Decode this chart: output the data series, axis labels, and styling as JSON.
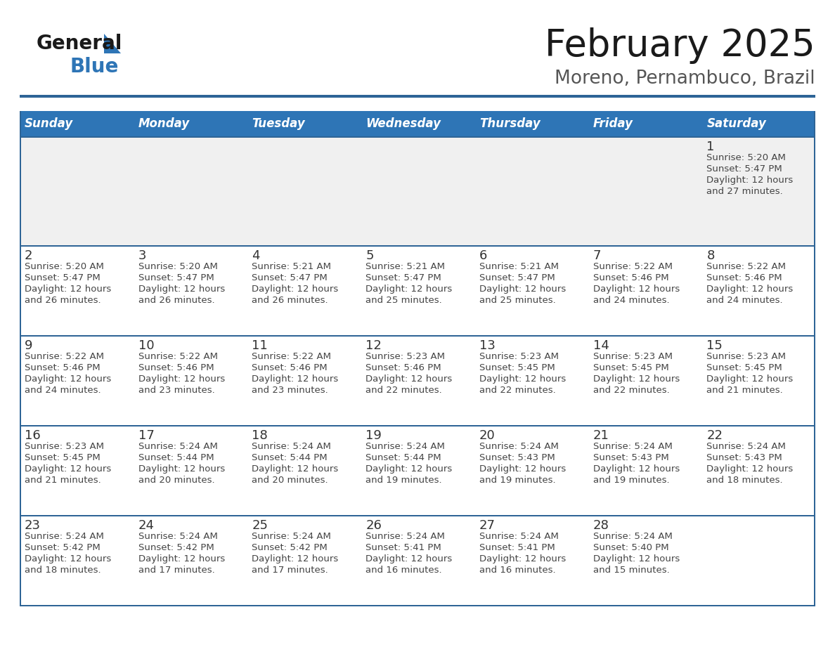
{
  "title": "February 2025",
  "subtitle": "Moreno, Pernambuco, Brazil",
  "header_bg": "#2E75B6",
  "header_text_color": "#FFFFFF",
  "cell_bg_white": "#FFFFFF",
  "cell_bg_light": "#F0F0F0",
  "divider_color": "#2E6496",
  "text_color": "#444444",
  "day_number_color": "#333333",
  "days_of_week": [
    "Sunday",
    "Monday",
    "Tuesday",
    "Wednesday",
    "Thursday",
    "Friday",
    "Saturday"
  ],
  "calendar_data": [
    [
      null,
      null,
      null,
      null,
      null,
      null,
      {
        "day": 1,
        "sunrise": "5:20 AM",
        "sunset": "5:47 PM",
        "daylight": "12 hours and 27 minutes."
      }
    ],
    [
      {
        "day": 2,
        "sunrise": "5:20 AM",
        "sunset": "5:47 PM",
        "daylight": "12 hours and 26 minutes."
      },
      {
        "day": 3,
        "sunrise": "5:20 AM",
        "sunset": "5:47 PM",
        "daylight": "12 hours and 26 minutes."
      },
      {
        "day": 4,
        "sunrise": "5:21 AM",
        "sunset": "5:47 PM",
        "daylight": "12 hours and 26 minutes."
      },
      {
        "day": 5,
        "sunrise": "5:21 AM",
        "sunset": "5:47 PM",
        "daylight": "12 hours and 25 minutes."
      },
      {
        "day": 6,
        "sunrise": "5:21 AM",
        "sunset": "5:47 PM",
        "daylight": "12 hours and 25 minutes."
      },
      {
        "day": 7,
        "sunrise": "5:22 AM",
        "sunset": "5:46 PM",
        "daylight": "12 hours and 24 minutes."
      },
      {
        "day": 8,
        "sunrise": "5:22 AM",
        "sunset": "5:46 PM",
        "daylight": "12 hours and 24 minutes."
      }
    ],
    [
      {
        "day": 9,
        "sunrise": "5:22 AM",
        "sunset": "5:46 PM",
        "daylight": "12 hours and 24 minutes."
      },
      {
        "day": 10,
        "sunrise": "5:22 AM",
        "sunset": "5:46 PM",
        "daylight": "12 hours and 23 minutes."
      },
      {
        "day": 11,
        "sunrise": "5:22 AM",
        "sunset": "5:46 PM",
        "daylight": "12 hours and 23 minutes."
      },
      {
        "day": 12,
        "sunrise": "5:23 AM",
        "sunset": "5:46 PM",
        "daylight": "12 hours and 22 minutes."
      },
      {
        "day": 13,
        "sunrise": "5:23 AM",
        "sunset": "5:45 PM",
        "daylight": "12 hours and 22 minutes."
      },
      {
        "day": 14,
        "sunrise": "5:23 AM",
        "sunset": "5:45 PM",
        "daylight": "12 hours and 22 minutes."
      },
      {
        "day": 15,
        "sunrise": "5:23 AM",
        "sunset": "5:45 PM",
        "daylight": "12 hours and 21 minutes."
      }
    ],
    [
      {
        "day": 16,
        "sunrise": "5:23 AM",
        "sunset": "5:45 PM",
        "daylight": "12 hours and 21 minutes."
      },
      {
        "day": 17,
        "sunrise": "5:24 AM",
        "sunset": "5:44 PM",
        "daylight": "12 hours and 20 minutes."
      },
      {
        "day": 18,
        "sunrise": "5:24 AM",
        "sunset": "5:44 PM",
        "daylight": "12 hours and 20 minutes."
      },
      {
        "day": 19,
        "sunrise": "5:24 AM",
        "sunset": "5:44 PM",
        "daylight": "12 hours and 19 minutes."
      },
      {
        "day": 20,
        "sunrise": "5:24 AM",
        "sunset": "5:43 PM",
        "daylight": "12 hours and 19 minutes."
      },
      {
        "day": 21,
        "sunrise": "5:24 AM",
        "sunset": "5:43 PM",
        "daylight": "12 hours and 19 minutes."
      },
      {
        "day": 22,
        "sunrise": "5:24 AM",
        "sunset": "5:43 PM",
        "daylight": "12 hours and 18 minutes."
      }
    ],
    [
      {
        "day": 23,
        "sunrise": "5:24 AM",
        "sunset": "5:42 PM",
        "daylight": "12 hours and 18 minutes."
      },
      {
        "day": 24,
        "sunrise": "5:24 AM",
        "sunset": "5:42 PM",
        "daylight": "12 hours and 17 minutes."
      },
      {
        "day": 25,
        "sunrise": "5:24 AM",
        "sunset": "5:42 PM",
        "daylight": "12 hours and 17 minutes."
      },
      {
        "day": 26,
        "sunrise": "5:24 AM",
        "sunset": "5:41 PM",
        "daylight": "12 hours and 16 minutes."
      },
      {
        "day": 27,
        "sunrise": "5:24 AM",
        "sunset": "5:41 PM",
        "daylight": "12 hours and 16 minutes."
      },
      {
        "day": 28,
        "sunrise": "5:24 AM",
        "sunset": "5:40 PM",
        "daylight": "12 hours and 15 minutes."
      },
      null
    ]
  ]
}
